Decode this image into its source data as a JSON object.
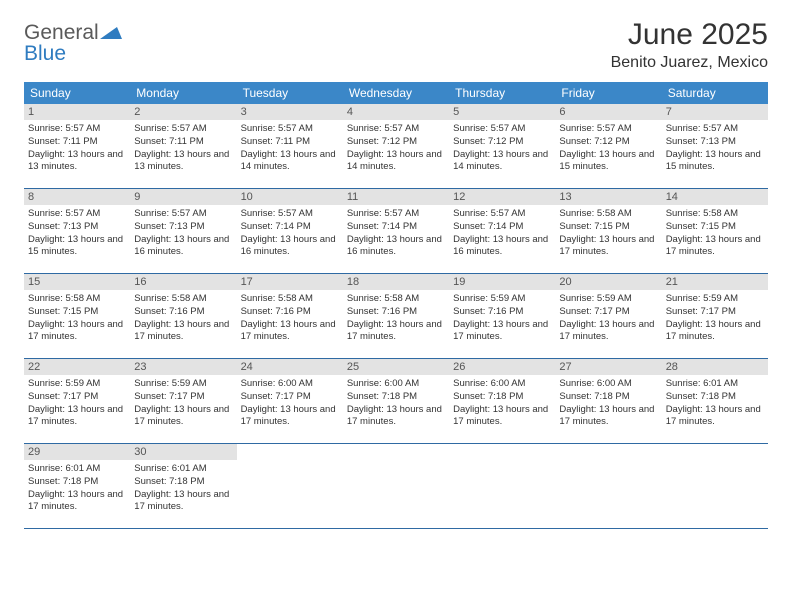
{
  "logo": {
    "word1": "General",
    "word2": "Blue"
  },
  "title": "June 2025",
  "location": "Benito Juarez, Mexico",
  "colors": {
    "header_bg": "#3b87c8",
    "header_text": "#ffffff",
    "daynum_bg": "#e3e3e3",
    "week_border": "#2f6aa3",
    "body_text": "#333333",
    "logo_gray": "#5a5a5a",
    "logo_blue": "#2f7cc0"
  },
  "fonts": {
    "title_size_pt": 22,
    "location_size_pt": 12,
    "dow_size_pt": 9,
    "cell_size_pt": 7
  },
  "dow": [
    "Sunday",
    "Monday",
    "Tuesday",
    "Wednesday",
    "Thursday",
    "Friday",
    "Saturday"
  ],
  "days": [
    {
      "n": 1,
      "sunrise": "5:57 AM",
      "sunset": "7:11 PM",
      "daylight": "13 hours and 13 minutes."
    },
    {
      "n": 2,
      "sunrise": "5:57 AM",
      "sunset": "7:11 PM",
      "daylight": "13 hours and 13 minutes."
    },
    {
      "n": 3,
      "sunrise": "5:57 AM",
      "sunset": "7:11 PM",
      "daylight": "13 hours and 14 minutes."
    },
    {
      "n": 4,
      "sunrise": "5:57 AM",
      "sunset": "7:12 PM",
      "daylight": "13 hours and 14 minutes."
    },
    {
      "n": 5,
      "sunrise": "5:57 AM",
      "sunset": "7:12 PM",
      "daylight": "13 hours and 14 minutes."
    },
    {
      "n": 6,
      "sunrise": "5:57 AM",
      "sunset": "7:12 PM",
      "daylight": "13 hours and 15 minutes."
    },
    {
      "n": 7,
      "sunrise": "5:57 AM",
      "sunset": "7:13 PM",
      "daylight": "13 hours and 15 minutes."
    },
    {
      "n": 8,
      "sunrise": "5:57 AM",
      "sunset": "7:13 PM",
      "daylight": "13 hours and 15 minutes."
    },
    {
      "n": 9,
      "sunrise": "5:57 AM",
      "sunset": "7:13 PM",
      "daylight": "13 hours and 16 minutes."
    },
    {
      "n": 10,
      "sunrise": "5:57 AM",
      "sunset": "7:14 PM",
      "daylight": "13 hours and 16 minutes."
    },
    {
      "n": 11,
      "sunrise": "5:57 AM",
      "sunset": "7:14 PM",
      "daylight": "13 hours and 16 minutes."
    },
    {
      "n": 12,
      "sunrise": "5:57 AM",
      "sunset": "7:14 PM",
      "daylight": "13 hours and 16 minutes."
    },
    {
      "n": 13,
      "sunrise": "5:58 AM",
      "sunset": "7:15 PM",
      "daylight": "13 hours and 17 minutes."
    },
    {
      "n": 14,
      "sunrise": "5:58 AM",
      "sunset": "7:15 PM",
      "daylight": "13 hours and 17 minutes."
    },
    {
      "n": 15,
      "sunrise": "5:58 AM",
      "sunset": "7:15 PM",
      "daylight": "13 hours and 17 minutes."
    },
    {
      "n": 16,
      "sunrise": "5:58 AM",
      "sunset": "7:16 PM",
      "daylight": "13 hours and 17 minutes."
    },
    {
      "n": 17,
      "sunrise": "5:58 AM",
      "sunset": "7:16 PM",
      "daylight": "13 hours and 17 minutes."
    },
    {
      "n": 18,
      "sunrise": "5:58 AM",
      "sunset": "7:16 PM",
      "daylight": "13 hours and 17 minutes."
    },
    {
      "n": 19,
      "sunrise": "5:59 AM",
      "sunset": "7:16 PM",
      "daylight": "13 hours and 17 minutes."
    },
    {
      "n": 20,
      "sunrise": "5:59 AM",
      "sunset": "7:17 PM",
      "daylight": "13 hours and 17 minutes."
    },
    {
      "n": 21,
      "sunrise": "5:59 AM",
      "sunset": "7:17 PM",
      "daylight": "13 hours and 17 minutes."
    },
    {
      "n": 22,
      "sunrise": "5:59 AM",
      "sunset": "7:17 PM",
      "daylight": "13 hours and 17 minutes."
    },
    {
      "n": 23,
      "sunrise": "5:59 AM",
      "sunset": "7:17 PM",
      "daylight": "13 hours and 17 minutes."
    },
    {
      "n": 24,
      "sunrise": "6:00 AM",
      "sunset": "7:17 PM",
      "daylight": "13 hours and 17 minutes."
    },
    {
      "n": 25,
      "sunrise": "6:00 AM",
      "sunset": "7:18 PM",
      "daylight": "13 hours and 17 minutes."
    },
    {
      "n": 26,
      "sunrise": "6:00 AM",
      "sunset": "7:18 PM",
      "daylight": "13 hours and 17 minutes."
    },
    {
      "n": 27,
      "sunrise": "6:00 AM",
      "sunset": "7:18 PM",
      "daylight": "13 hours and 17 minutes."
    },
    {
      "n": 28,
      "sunrise": "6:01 AM",
      "sunset": "7:18 PM",
      "daylight": "13 hours and 17 minutes."
    },
    {
      "n": 29,
      "sunrise": "6:01 AM",
      "sunset": "7:18 PM",
      "daylight": "13 hours and 17 minutes."
    },
    {
      "n": 30,
      "sunrise": "6:01 AM",
      "sunset": "7:18 PM",
      "daylight": "13 hours and 17 minutes."
    }
  ],
  "labels": {
    "sunrise_prefix": "Sunrise: ",
    "sunset_prefix": "Sunset: ",
    "daylight_prefix": "Daylight: "
  },
  "layout": {
    "first_dow_index": 0,
    "total_days": 30,
    "weeks": 5
  }
}
